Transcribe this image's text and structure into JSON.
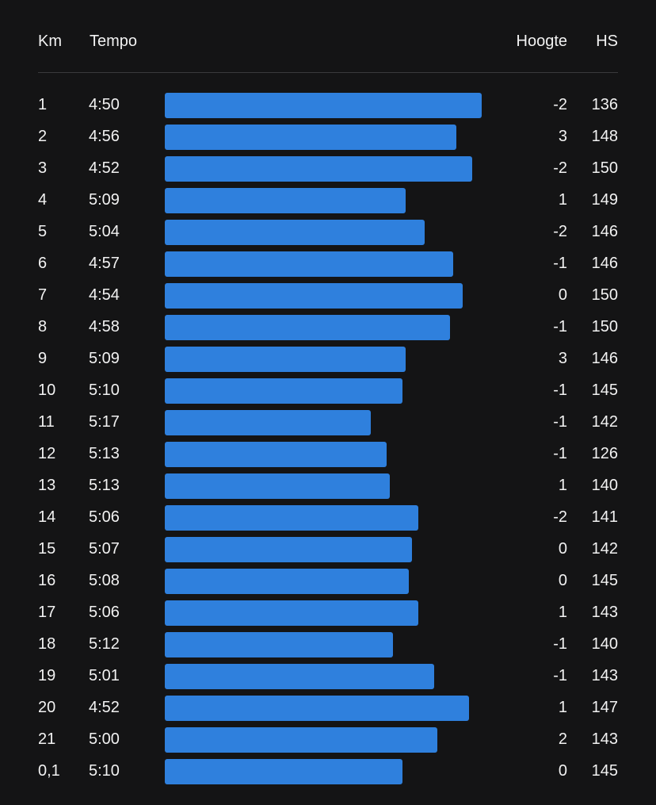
{
  "header": {
    "km_label": "Km",
    "tempo_label": "Tempo",
    "hoogte_label": "Hoogte",
    "hs_label": "HS"
  },
  "colors": {
    "background": "#141415",
    "bar": "#2f80dd",
    "text": "#f2f2f2",
    "divider": "#3a3a3c"
  },
  "splits": [
    {
      "km": "1",
      "tempo": "4:50",
      "hoogte": "-2",
      "hs": "136",
      "bar_fraction": 1.0
    },
    {
      "km": "2",
      "tempo": "4:56",
      "hoogte": "3",
      "hs": "148",
      "bar_fraction": 0.92
    },
    {
      "km": "3",
      "tempo": "4:52",
      "hoogte": "-2",
      "hs": "150",
      "bar_fraction": 0.97
    },
    {
      "km": "4",
      "tempo": "5:09",
      "hoogte": "1",
      "hs": "149",
      "bar_fraction": 0.76
    },
    {
      "km": "5",
      "tempo": "5:04",
      "hoogte": "-2",
      "hs": "146",
      "bar_fraction": 0.82
    },
    {
      "km": "6",
      "tempo": "4:57",
      "hoogte": "-1",
      "hs": "146",
      "bar_fraction": 0.91
    },
    {
      "km": "7",
      "tempo": "4:54",
      "hoogte": "0",
      "hs": "150",
      "bar_fraction": 0.94
    },
    {
      "km": "8",
      "tempo": "4:58",
      "hoogte": "-1",
      "hs": "150",
      "bar_fraction": 0.9
    },
    {
      "km": "9",
      "tempo": "5:09",
      "hoogte": "3",
      "hs": "146",
      "bar_fraction": 0.76
    },
    {
      "km": "10",
      "tempo": "5:10",
      "hoogte": "-1",
      "hs": "145",
      "bar_fraction": 0.75
    },
    {
      "km": "11",
      "tempo": "5:17",
      "hoogte": "-1",
      "hs": "142",
      "bar_fraction": 0.65
    },
    {
      "km": "12",
      "tempo": "5:13",
      "hoogte": "-1",
      "hs": "126",
      "bar_fraction": 0.7
    },
    {
      "km": "13",
      "tempo": "5:13",
      "hoogte": "1",
      "hs": "140",
      "bar_fraction": 0.71
    },
    {
      "km": "14",
      "tempo": "5:06",
      "hoogte": "-2",
      "hs": "141",
      "bar_fraction": 0.8
    },
    {
      "km": "15",
      "tempo": "5:07",
      "hoogte": "0",
      "hs": "142",
      "bar_fraction": 0.78
    },
    {
      "km": "16",
      "tempo": "5:08",
      "hoogte": "0",
      "hs": "145",
      "bar_fraction": 0.77
    },
    {
      "km": "17",
      "tempo": "5:06",
      "hoogte": "1",
      "hs": "143",
      "bar_fraction": 0.8
    },
    {
      "km": "18",
      "tempo": "5:12",
      "hoogte": "-1",
      "hs": "140",
      "bar_fraction": 0.72
    },
    {
      "km": "19",
      "tempo": "5:01",
      "hoogte": "-1",
      "hs": "143",
      "bar_fraction": 0.85
    },
    {
      "km": "20",
      "tempo": "4:52",
      "hoogte": "1",
      "hs": "147",
      "bar_fraction": 0.96
    },
    {
      "km": "21",
      "tempo": "5:00",
      "hoogte": "2",
      "hs": "143",
      "bar_fraction": 0.86
    },
    {
      "km": "0,1",
      "tempo": "5:10",
      "hoogte": "0",
      "hs": "145",
      "bar_fraction": 0.75
    }
  ]
}
